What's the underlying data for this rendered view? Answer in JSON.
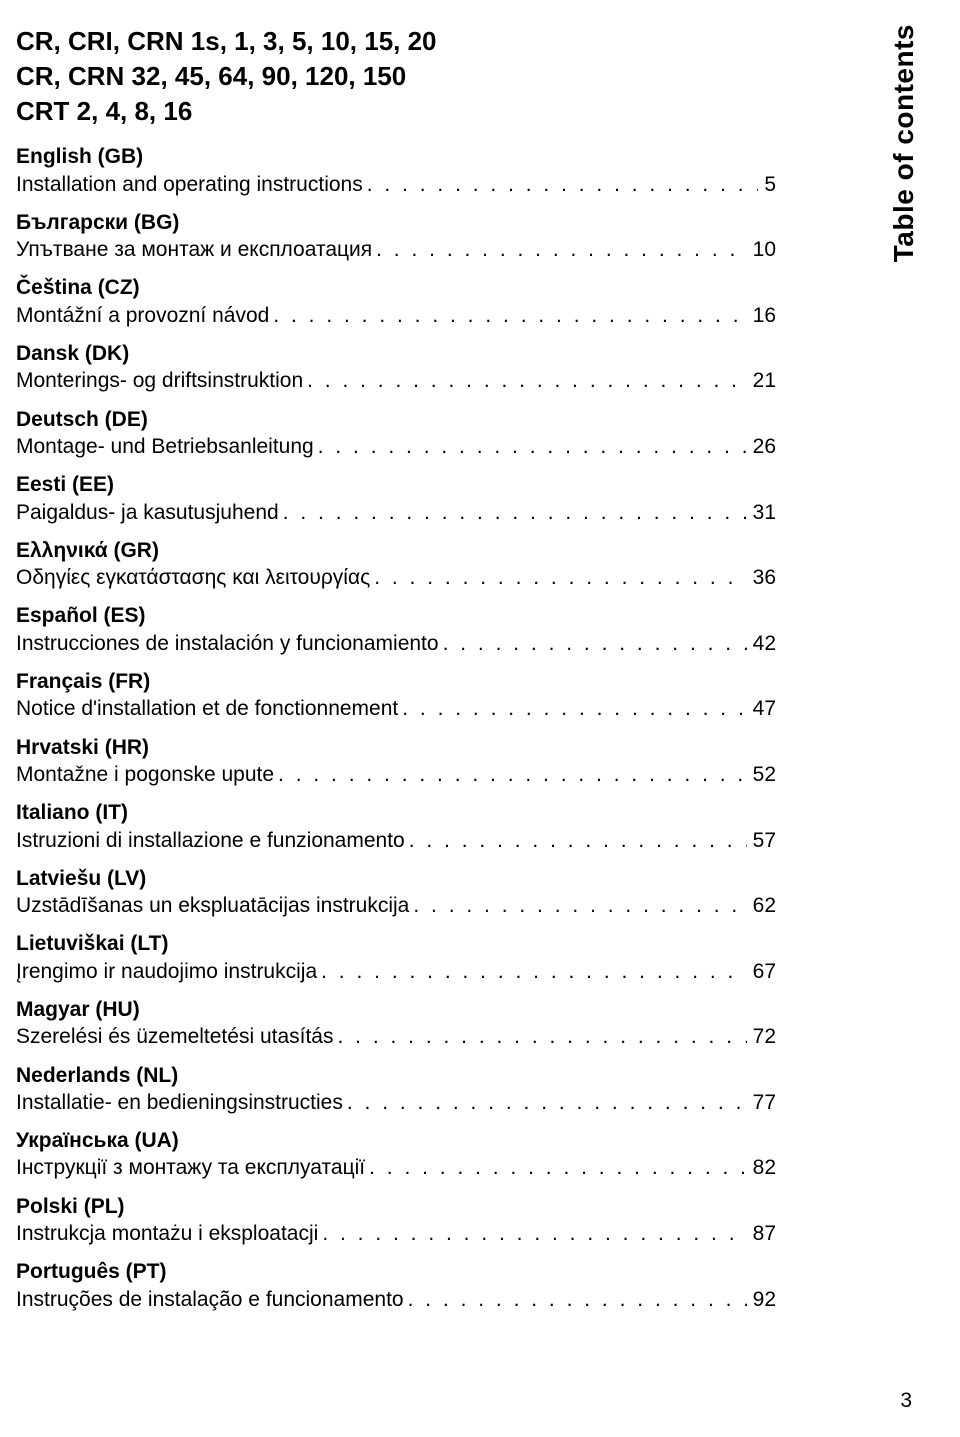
{
  "product_lines": [
    "CR, CRI, CRN 1s, 1, 3, 5, 10, 15, 20",
    "CR, CRN 32, 45, 64, 90, 120, 150",
    "CRT 2, 4, 8, 16"
  ],
  "side_label": "Table of contents",
  "footer_page": "3",
  "entries": [
    {
      "lang": "English (GB)",
      "desc": "Installation and operating instructions",
      "page": "5"
    },
    {
      "lang": "Български (BG)",
      "desc": "Упътване за монтаж и експлоатация",
      "page": "10"
    },
    {
      "lang": "Čeština (CZ)",
      "desc": "Montážní a provozní návod",
      "page": "16"
    },
    {
      "lang": "Dansk (DK)",
      "desc": "Monterings- og driftsinstruktion",
      "page": "21"
    },
    {
      "lang": "Deutsch (DE)",
      "desc": "Montage- und Betriebsanleitung",
      "page": "26"
    },
    {
      "lang": "Eesti (EE)",
      "desc": "Paigaldus- ja kasutusjuhend",
      "page": "31"
    },
    {
      "lang": "Ελληνικά (GR)",
      "desc": "Οδηγίες εγκατάστασης και λειτουργίας",
      "page": "36"
    },
    {
      "lang": "Español (ES)",
      "desc": "Instrucciones de instalación y funcionamiento",
      "page": "42"
    },
    {
      "lang": "Français (FR)",
      "desc": "Notice d'installation et de fonctionnement",
      "page": "47"
    },
    {
      "lang": "Hrvatski (HR)",
      "desc": "Montažne i pogonske upute",
      "page": "52"
    },
    {
      "lang": "Italiano (IT)",
      "desc": "Istruzioni di installazione e funzionamento",
      "page": "57"
    },
    {
      "lang": "Latviešu (LV)",
      "desc": "Uzstādīšanas un ekspluatācijas instrukcija",
      "page": "62"
    },
    {
      "lang": "Lietuviškai (LT)",
      "desc": "Įrengimo ir naudojimo instrukcija",
      "page": "67"
    },
    {
      "lang": "Magyar (HU)",
      "desc": "Szerelési és üzemeltetési utasítás",
      "page": "72"
    },
    {
      "lang": "Nederlands (NL)",
      "desc": "Installatie- en bedieningsinstructies",
      "page": "77"
    },
    {
      "lang": "Українська (UA)",
      "desc": "Інструкції з монтажу та експлуатації",
      "page": "82"
    },
    {
      "lang": "Polski (PL)",
      "desc": "Instrukcja montażu i eksploatacji",
      "page": "87"
    },
    {
      "lang": "Português (PT)",
      "desc": "Instruções de instalação e funcionamento",
      "page": "92"
    }
  ]
}
